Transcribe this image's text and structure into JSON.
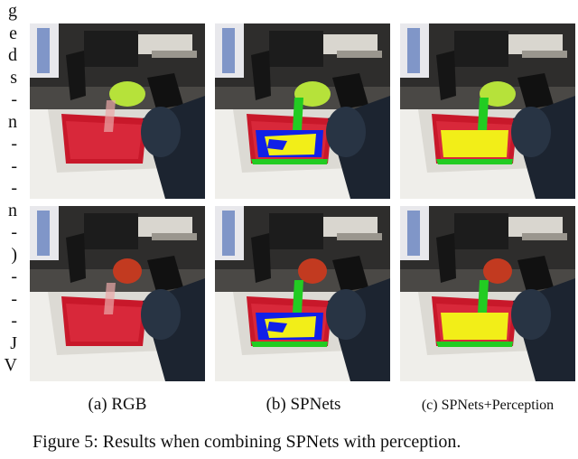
{
  "margin_text": [
    "g",
    "e",
    "d",
    "s",
    "-",
    "n",
    "-",
    "-",
    "-",
    "n",
    "-",
    ")",
    "-",
    "-",
    "-",
    "J",
    "V"
  ],
  "figure": {
    "columns": [
      {
        "key": "rgb",
        "label": "(a) RGB"
      },
      {
        "key": "spnets",
        "label": "(b) SPNets"
      },
      {
        "key": "spnets_perception",
        "label": "(c) SPNets+Perception"
      }
    ],
    "rows": [
      {
        "key": "top",
        "container": "green-cup"
      },
      {
        "key": "bottom",
        "container": "red-cup"
      }
    ],
    "caption": "Figure 5: Results when combining SPNets with perception."
  },
  "colors": {
    "liquid_blue": "#1020e8",
    "liquid_yellow": "#f2ee18",
    "liquid_green": "#22cc22",
    "basin_red": "#c8182a",
    "arm_dark": "#1c2430",
    "cup_green": "#b6e23a",
    "cup_red": "#c23a20"
  }
}
